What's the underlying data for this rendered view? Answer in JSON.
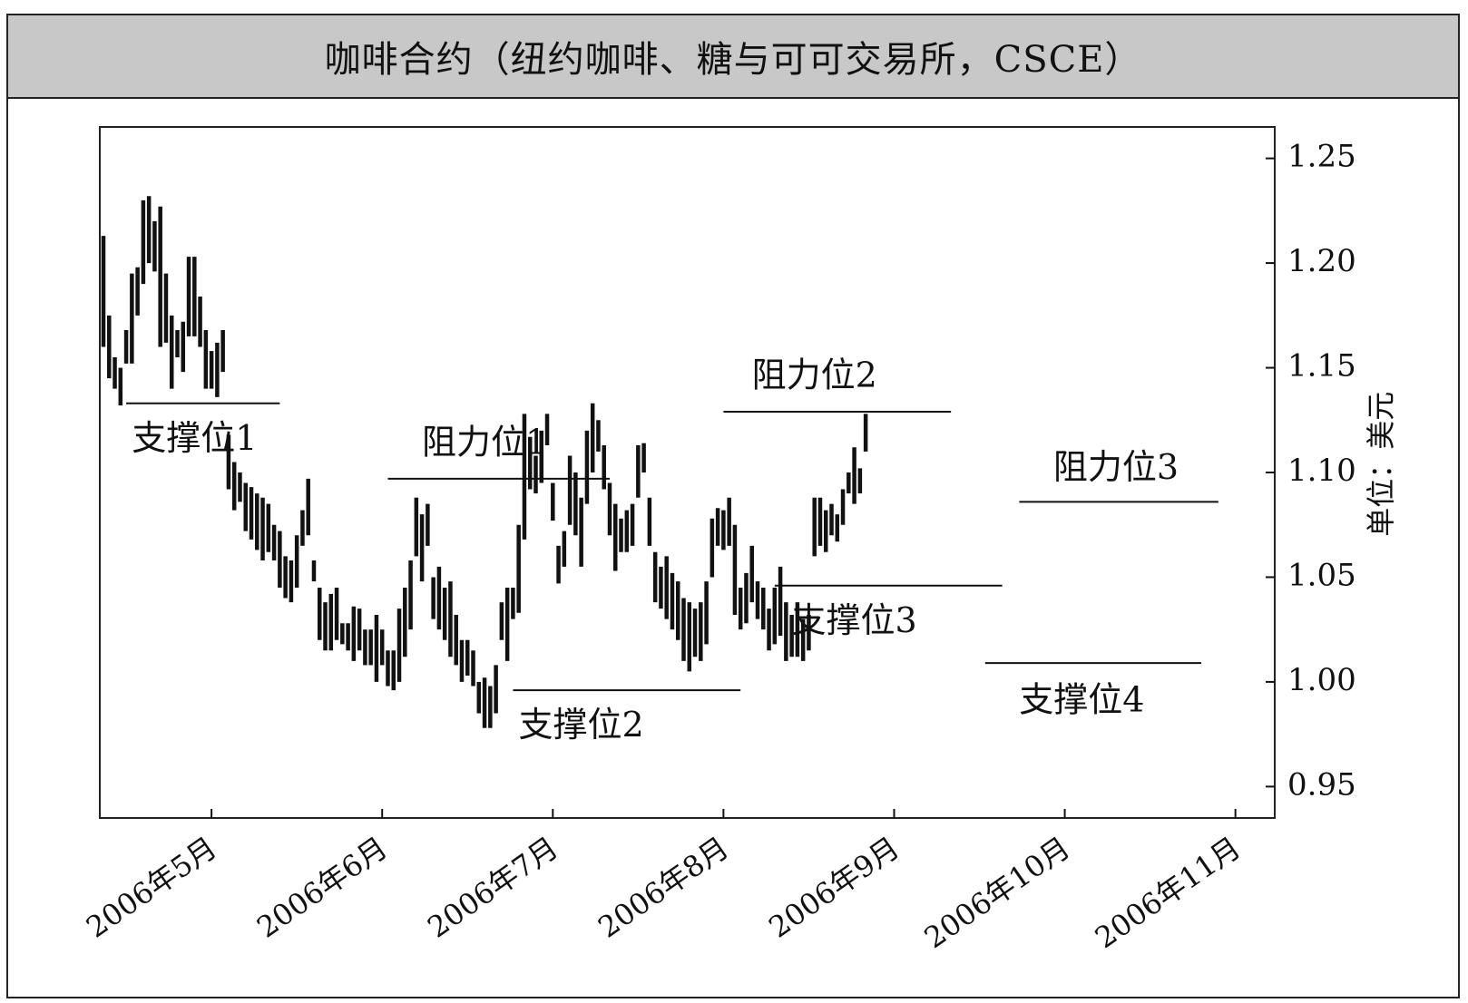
{
  "colors": {
    "title_bg": "#c8c8c8",
    "ink": "#111111",
    "frame": "#222222"
  },
  "chart_data": {
    "type": "bar",
    "subtype": "ohlc-price-bars",
    "title": "咖啡合约（纽约咖啡、糖与可可交易所，CSCE）",
    "y_unit_label": "单位：美元",
    "y_axis_side": "right",
    "ylim": [
      0.935,
      1.265
    ],
    "y_ticks": [
      {
        "value": 1.25,
        "label": "1.25"
      },
      {
        "value": 1.2,
        "label": "1.20"
      },
      {
        "value": 1.15,
        "label": "1.15"
      },
      {
        "value": 1.1,
        "label": "1.10"
      },
      {
        "value": 1.05,
        "label": "1.05"
      },
      {
        "value": 1.0,
        "label": "1.00"
      },
      {
        "value": 0.95,
        "label": "0.95"
      }
    ],
    "x_range_bar_index": [
      0,
      204
    ],
    "x_ticks": [
      {
        "bar_index": 19,
        "label": "2006年5月"
      },
      {
        "bar_index": 49,
        "label": "2006年6月"
      },
      {
        "bar_index": 79,
        "label": "2006年7月"
      },
      {
        "bar_index": 109,
        "label": "2006年8月"
      },
      {
        "bar_index": 139,
        "label": "2006年9月"
      },
      {
        "bar_index": 169,
        "label": "2006年10月"
      },
      {
        "bar_index": 199,
        "label": "2006年11月"
      }
    ],
    "grid": false,
    "bars": [
      [
        1.213,
        1.16
      ],
      [
        1.175,
        1.145
      ],
      [
        1.155,
        1.14
      ],
      [
        1.15,
        1.132
      ],
      [
        1.168,
        1.152
      ],
      [
        1.195,
        1.152
      ],
      [
        1.198,
        1.175
      ],
      [
        1.23,
        1.19
      ],
      [
        1.232,
        1.2
      ],
      [
        1.22,
        1.196
      ],
      [
        1.227,
        1.16
      ],
      [
        1.195,
        1.162
      ],
      [
        1.175,
        1.14
      ],
      [
        1.168,
        1.155
      ],
      [
        1.172,
        1.148
      ],
      [
        1.203,
        1.165
      ],
      [
        1.203,
        1.165
      ],
      [
        1.184,
        1.16
      ],
      [
        1.168,
        1.14
      ],
      [
        1.158,
        1.14
      ],
      [
        1.162,
        1.136
      ],
      [
        1.168,
        1.148
      ],
      [
        1.118,
        1.092
      ],
      [
        1.105,
        1.082
      ],
      [
        1.1,
        1.086
      ],
      [
        1.095,
        1.072
      ],
      [
        1.093,
        1.068
      ],
      [
        1.09,
        1.063
      ],
      [
        1.088,
        1.058
      ],
      [
        1.085,
        1.062
      ],
      [
        1.075,
        1.058
      ],
      [
        1.072,
        1.045
      ],
      [
        1.06,
        1.04
      ],
      [
        1.058,
        1.038
      ],
      [
        1.07,
        1.045
      ],
      [
        1.082,
        1.065
      ],
      [
        1.097,
        1.07
      ],
      [
        1.058,
        1.048
      ],
      [
        1.045,
        1.02
      ],
      [
        1.038,
        1.015
      ],
      [
        1.042,
        1.015
      ],
      [
        1.045,
        1.02
      ],
      [
        1.028,
        1.018
      ],
      [
        1.028,
        1.015
      ],
      [
        1.036,
        1.01
      ],
      [
        1.035,
        1.015
      ],
      [
        1.025,
        1.008
      ],
      [
        1.025,
        1.008
      ],
      [
        1.032,
        1.0
      ],
      [
        1.025,
        1.008
      ],
      [
        1.015,
        0.998
      ],
      [
        1.015,
        0.996
      ],
      [
        1.035,
        1.0
      ],
      [
        1.045,
        1.012
      ],
      [
        1.058,
        1.025
      ],
      [
        1.088,
        1.06
      ],
      [
        1.08,
        1.048
      ],
      [
        1.085,
        1.065
      ],
      [
        1.05,
        1.03
      ],
      [
        1.055,
        1.025
      ],
      [
        1.045,
        1.02
      ],
      [
        1.048,
        1.012
      ],
      [
        1.032,
        1.008
      ],
      [
        1.02,
        1.0
      ],
      [
        1.02,
        1.003
      ],
      [
        1.015,
        0.998
      ],
      [
        1.0,
        0.985
      ],
      [
        1.002,
        0.978
      ],
      [
        0.998,
        0.978
      ],
      [
        1.008,
        0.985
      ],
      [
        1.038,
        1.02
      ],
      [
        1.045,
        1.01
      ],
      [
        1.045,
        1.03
      ],
      [
        1.075,
        1.033
      ],
      [
        1.128,
        1.068
      ],
      [
        1.117,
        1.092
      ],
      [
        1.108,
        1.09
      ],
      [
        1.12,
        1.095
      ],
      [
        1.128,
        1.113
      ],
      [
        1.095,
        1.077
      ],
      [
        1.065,
        1.047
      ],
      [
        1.072,
        1.055
      ],
      [
        1.108,
        1.075
      ],
      [
        1.1,
        1.07
      ],
      [
        1.088,
        1.055
      ],
      [
        1.12,
        1.085
      ],
      [
        1.133,
        1.1
      ],
      [
        1.125,
        1.11
      ],
      [
        1.113,
        1.092
      ],
      [
        1.095,
        1.07
      ],
      [
        1.085,
        1.053
      ],
      [
        1.078,
        1.062
      ],
      [
        1.082,
        1.062
      ],
      [
        1.085,
        1.065
      ],
      [
        1.113,
        1.088
      ],
      [
        1.114,
        1.1
      ],
      [
        1.088,
        1.065
      ],
      [
        1.062,
        1.038
      ],
      [
        1.055,
        1.035
      ],
      [
        1.06,
        1.03
      ],
      [
        1.052,
        1.025
      ],
      [
        1.048,
        1.02
      ],
      [
        1.04,
        1.01
      ],
      [
        1.038,
        1.005
      ],
      [
        1.035,
        1.012
      ],
      [
        1.038,
        1.01
      ],
      [
        1.048,
        1.018
      ],
      [
        1.078,
        1.05
      ],
      [
        1.083,
        1.065
      ],
      [
        1.082,
        1.063
      ],
      [
        1.088,
        1.065
      ],
      [
        1.075,
        1.032
      ],
      [
        1.045,
        1.025
      ],
      [
        1.052,
        1.028
      ],
      [
        1.065,
        1.038
      ],
      [
        1.048,
        1.03
      ],
      [
        1.045,
        1.025
      ],
      [
        1.035,
        1.015
      ],
      [
        1.045,
        1.018
      ],
      [
        1.055,
        1.022
      ],
      [
        1.038,
        1.01
      ],
      [
        1.032,
        1.012
      ],
      [
        1.038,
        1.012
      ],
      [
        1.03,
        1.01
      ],
      [
        1.032,
        1.015
      ],
      [
        1.088,
        1.06
      ],
      [
        1.088,
        1.065
      ],
      [
        1.082,
        1.062
      ],
      [
        1.085,
        1.07
      ],
      [
        1.08,
        1.067
      ],
      [
        1.092,
        1.075
      ],
      [
        1.1,
        1.09
      ],
      [
        1.112,
        1.085
      ],
      [
        1.102,
        1.09
      ],
      [
        1.128,
        1.11
      ]
    ],
    "lines": [
      {
        "label": "支撑位1",
        "value": 1.133,
        "x_start": 4,
        "x_end": 31,
        "label_x": 16,
        "label_value": 1.115
      },
      {
        "label": "阻力位1",
        "value": 1.097,
        "x_start": 50,
        "x_end": 89,
        "label_x": 67,
        "label_value": 1.113
      },
      {
        "label": "支撑位2",
        "value": 0.996,
        "x_start": 72,
        "x_end": 112,
        "label_x": 84,
        "label_value": 0.978
      },
      {
        "label": "阻力位2",
        "value": 1.129,
        "x_start": 109,
        "x_end": 149,
        "label_x": 125,
        "label_value": 1.145
      },
      {
        "label": "支撑位3",
        "value": 1.046,
        "x_start": 118,
        "x_end": 158,
        "label_x": 132,
        "label_value": 1.028
      },
      {
        "label": "阻力位3",
        "value": 1.086,
        "x_start": 161,
        "x_end": 196,
        "label_x": 178,
        "label_value": 1.101
      },
      {
        "label": "支撑位4",
        "value": 1.009,
        "x_start": 155,
        "x_end": 193,
        "label_x": 172,
        "label_value": 0.99
      }
    ]
  }
}
